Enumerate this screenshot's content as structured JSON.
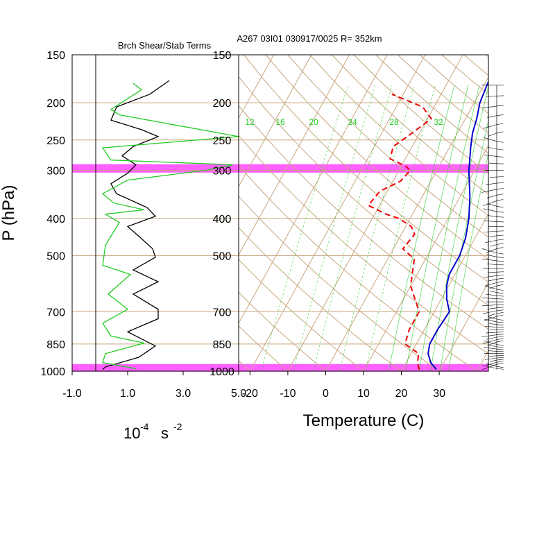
{
  "figure": {
    "title": "A267 03I01 030917/0025 R= 352km",
    "left_panel_title": "Brch Shear/Stab Terms",
    "left_xlabel_base": "10",
    "left_xlabel_exp1": "-4",
    "left_xlabel_unit": "s",
    "left_xlabel_exp2": "-2",
    "ylabel": "P (hPa)",
    "right_xlabel": "Temperature (C)"
  },
  "colors": {
    "skew_grid": "#c8a57d",
    "mixing_ratio": "#22cc22",
    "temperature": "#0000cc",
    "dewpoint": "#ee0000",
    "highlight": "#ff44ff",
    "black_curve": "#000000",
    "green_curve": "#22cc22"
  },
  "pressure_ticks": [
    "150",
    "200",
    "250",
    "300",
    "400",
    "500",
    "700",
    "850",
    "1000"
  ],
  "mixing_ratio_labels": [
    "12",
    "16",
    "20",
    "24",
    "28",
    "32"
  ],
  "chart_data": [
    {
      "type": "line",
      "panel": "Brch Shear/Stab Terms",
      "xlim": [
        -1.0,
        5.0
      ],
      "x_ticks": [
        "-1.0",
        "1.0",
        "3.0",
        "5.0"
      ],
      "y_axis": "pressure (hPa), log scale",
      "ylim": [
        1000,
        150
      ],
      "series": [
        {
          "color": "black",
          "points": [
            [
              2.5,
              175
            ],
            [
              1.8,
              190
            ],
            [
              0.6,
              205
            ],
            [
              0.4,
              222
            ],
            [
              1.5,
              235
            ],
            [
              2.1,
              245
            ],
            [
              1.2,
              260
            ],
            [
              0.8,
              275
            ],
            [
              1.3,
              290
            ],
            [
              1.0,
              305
            ],
            [
              0.4,
              325
            ],
            [
              0.6,
              345
            ],
            [
              1.7,
              375
            ],
            [
              2.0,
              395
            ],
            [
              1.0,
              420
            ],
            [
              1.4,
              445
            ],
            [
              1.9,
              480
            ],
            [
              2.0,
              505
            ],
            [
              1.2,
              545
            ],
            [
              2.1,
              585
            ],
            [
              1.2,
              630
            ],
            [
              2.1,
              690
            ],
            [
              2.1,
              730
            ],
            [
              1.0,
              790
            ],
            [
              2.0,
              860
            ],
            [
              1.4,
              920
            ],
            [
              0.2,
              975
            ],
            [
              0.1,
              990
            ]
          ]
        },
        {
          "color": "green",
          "points": [
            [
              1.2,
              178
            ],
            [
              1.5,
              185
            ],
            [
              0.4,
              208
            ],
            [
              0.7,
              215
            ],
            [
              5.0,
              245
            ],
            [
              0.1,
              262
            ],
            [
              0.4,
              282
            ],
            [
              4.8,
              290
            ],
            [
              3.8,
              300
            ],
            [
              1.0,
              318
            ],
            [
              0.1,
              345
            ],
            [
              0.5,
              365
            ],
            [
              1.6,
              380
            ],
            [
              0.2,
              390
            ],
            [
              0.7,
              410
            ],
            [
              0.2,
              470
            ],
            [
              0.1,
              530
            ],
            [
              1.1,
              560
            ],
            [
              0.3,
              630
            ],
            [
              1.0,
              690
            ],
            [
              0.1,
              750
            ],
            [
              0.4,
              810
            ],
            [
              1.6,
              845
            ],
            [
              0.2,
              900
            ],
            [
              0.1,
              950
            ],
            [
              1.3,
              985
            ]
          ]
        }
      ]
    },
    {
      "type": "line",
      "panel": "skew-T",
      "xlabel": "Temperature (C)",
      "x_ticks": [
        "-20",
        "-10",
        "0",
        "10",
        "20",
        "30"
      ],
      "xlim": [
        -23,
        43
      ],
      "y_axis": "pressure (hPa), log scale",
      "ylim": [
        1000,
        150
      ],
      "series": [
        {
          "color": "blue",
          "style": "solid",
          "points": [
            [
              29,
              990
            ],
            [
              26.5,
              950
            ],
            [
              24.5,
              900
            ],
            [
              23.5,
              850
            ],
            [
              23.5,
              780
            ],
            [
              24,
              700
            ],
            [
              21.5,
              650
            ],
            [
              19.5,
              600
            ],
            [
              18.5,
              560
            ],
            [
              18.5,
              500
            ],
            [
              17.5,
              450
            ],
            [
              15.5,
              400
            ],
            [
              12.5,
              350
            ],
            [
              8.5,
              300
            ],
            [
              5.5,
              260
            ],
            [
              4,
              240
            ],
            [
              3,
              220
            ],
            [
              1.5,
              200
            ],
            [
              0.8,
              180
            ],
            [
              0.5,
              170
            ]
          ]
        },
        {
          "color": "red",
          "style": "dashed",
          "points": [
            [
              24.5,
              990
            ],
            [
              23,
              950
            ],
            [
              22,
              900
            ],
            [
              17,
              850
            ],
            [
              16,
              780
            ],
            [
              16,
              700
            ],
            [
              10,
              600
            ],
            [
              7,
              510
            ],
            [
              2.5,
              480
            ],
            [
              3.5,
              440
            ],
            [
              1.5,
              420
            ],
            [
              -3,
              400
            ],
            [
              -7,
              390
            ],
            [
              -13,
              370
            ],
            [
              -12,
              340
            ],
            [
              -8,
              320
            ],
            [
              -7,
              300
            ],
            [
              -9,
              292
            ],
            [
              -14,
              280
            ],
            [
              -15,
              260
            ],
            [
              -12,
              240
            ],
            [
              -9,
              220
            ],
            [
              -13,
              205
            ],
            [
              -23,
              190
            ]
          ]
        }
      ]
    }
  ]
}
